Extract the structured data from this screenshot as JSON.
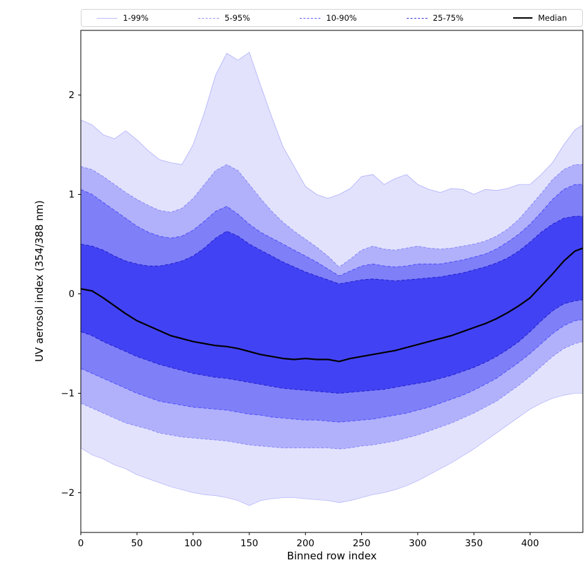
{
  "figure": {
    "background": "#ffffff"
  },
  "legend": {
    "items": [
      {
        "name": "band-1-99",
        "label": "1-99%",
        "color": "rgba(135,135,250,0.55)",
        "line_width": 1,
        "dashed": false
      },
      {
        "name": "band-5-95",
        "label": "5-95%",
        "color": "rgba(110,110,250,0.75)",
        "line_width": 1,
        "dashed": true
      },
      {
        "name": "band-10-90",
        "label": "10-90%",
        "color": "rgba(70,70,250,0.9)",
        "line_width": 1.2,
        "dashed": true
      },
      {
        "name": "band-25-75",
        "label": "25-75%",
        "color": "rgba(40,40,215,0.95)",
        "line_width": 1.4,
        "dashed": true
      },
      {
        "name": "median",
        "label": "Median",
        "color": "#000000",
        "line_width": 2.5,
        "dashed": false
      }
    ]
  },
  "chart_data": {
    "type": "area",
    "title": "",
    "xlabel": "Binned row index",
    "ylabel": "UV aerosol index (354/388 nm)",
    "xlim": [
      0,
      447
    ],
    "ylim": [
      -2.4,
      2.65
    ],
    "grid": false,
    "legend_position": "top",
    "xticks": [
      0,
      50,
      100,
      150,
      200,
      250,
      300,
      350,
      400
    ],
    "xtick_labels": [
      "0",
      "50",
      "100",
      "150",
      "200",
      "250",
      "300",
      "350",
      "400"
    ],
    "yticks": [
      -2,
      -1,
      0,
      1,
      2
    ],
    "ytick_labels": [
      "−2",
      "−1",
      "0",
      "1",
      "2"
    ],
    "x": [
      0,
      10,
      20,
      30,
      40,
      50,
      60,
      70,
      80,
      90,
      100,
      110,
      120,
      130,
      140,
      150,
      160,
      170,
      180,
      190,
      200,
      210,
      220,
      230,
      240,
      250,
      260,
      270,
      280,
      290,
      300,
      310,
      320,
      330,
      340,
      350,
      360,
      370,
      380,
      390,
      400,
      410,
      420,
      430,
      440,
      447
    ],
    "series": {
      "p1": [
        -1.55,
        -1.62,
        -1.66,
        -1.72,
        -1.76,
        -1.82,
        -1.86,
        -1.9,
        -1.94,
        -1.97,
        -2.0,
        -2.02,
        -2.03,
        -2.05,
        -2.08,
        -2.13,
        -2.08,
        -2.06,
        -2.05,
        -2.05,
        -2.06,
        -2.07,
        -2.08,
        -2.1,
        -2.08,
        -2.05,
        -2.02,
        -2.0,
        -1.97,
        -1.93,
        -1.88,
        -1.82,
        -1.76,
        -1.7,
        -1.63,
        -1.56,
        -1.48,
        -1.4,
        -1.32,
        -1.24,
        -1.16,
        -1.1,
        -1.05,
        -1.02,
        -1.0,
        -1.0
      ],
      "p5": [
        -1.1,
        -1.15,
        -1.2,
        -1.25,
        -1.3,
        -1.33,
        -1.36,
        -1.4,
        -1.42,
        -1.44,
        -1.45,
        -1.46,
        -1.47,
        -1.48,
        -1.5,
        -1.52,
        -1.53,
        -1.54,
        -1.55,
        -1.55,
        -1.55,
        -1.55,
        -1.55,
        -1.56,
        -1.55,
        -1.53,
        -1.52,
        -1.5,
        -1.48,
        -1.45,
        -1.42,
        -1.38,
        -1.34,
        -1.3,
        -1.25,
        -1.2,
        -1.14,
        -1.08,
        -1.0,
        -0.92,
        -0.83,
        -0.73,
        -0.63,
        -0.55,
        -0.5,
        -0.48
      ],
      "p10": [
        -0.75,
        -0.8,
        -0.85,
        -0.9,
        -0.95,
        -1.0,
        -1.04,
        -1.08,
        -1.1,
        -1.12,
        -1.14,
        -1.15,
        -1.16,
        -1.17,
        -1.19,
        -1.21,
        -1.22,
        -1.24,
        -1.25,
        -1.26,
        -1.27,
        -1.27,
        -1.28,
        -1.29,
        -1.28,
        -1.27,
        -1.26,
        -1.24,
        -1.22,
        -1.2,
        -1.17,
        -1.14,
        -1.1,
        -1.06,
        -1.02,
        -0.97,
        -0.91,
        -0.85,
        -0.77,
        -0.69,
        -0.6,
        -0.5,
        -0.4,
        -0.32,
        -0.27,
        -0.26
      ],
      "p25": [
        -0.38,
        -0.42,
        -0.48,
        -0.53,
        -0.58,
        -0.63,
        -0.67,
        -0.71,
        -0.74,
        -0.77,
        -0.8,
        -0.82,
        -0.84,
        -0.85,
        -0.87,
        -0.89,
        -0.91,
        -0.93,
        -0.95,
        -0.96,
        -0.97,
        -0.98,
        -0.99,
        -1.0,
        -0.99,
        -0.98,
        -0.97,
        -0.96,
        -0.94,
        -0.92,
        -0.9,
        -0.88,
        -0.85,
        -0.82,
        -0.78,
        -0.74,
        -0.69,
        -0.63,
        -0.56,
        -0.48,
        -0.38,
        -0.27,
        -0.17,
        -0.1,
        -0.07,
        -0.06
      ],
      "median": [
        0.05,
        0.03,
        -0.04,
        -0.12,
        -0.2,
        -0.27,
        -0.32,
        -0.37,
        -0.42,
        -0.45,
        -0.48,
        -0.5,
        -0.52,
        -0.53,
        -0.55,
        -0.58,
        -0.61,
        -0.63,
        -0.65,
        -0.66,
        -0.65,
        -0.66,
        -0.66,
        -0.68,
        -0.65,
        -0.63,
        -0.61,
        -0.59,
        -0.57,
        -0.54,
        -0.51,
        -0.48,
        -0.45,
        -0.42,
        -0.38,
        -0.34,
        -0.3,
        -0.25,
        -0.19,
        -0.12,
        -0.04,
        0.08,
        0.2,
        0.33,
        0.43,
        0.46
      ],
      "p75": [
        0.5,
        0.48,
        0.44,
        0.38,
        0.33,
        0.3,
        0.28,
        0.28,
        0.3,
        0.33,
        0.38,
        0.46,
        0.56,
        0.63,
        0.58,
        0.5,
        0.44,
        0.38,
        0.32,
        0.27,
        0.22,
        0.18,
        0.14,
        0.1,
        0.12,
        0.14,
        0.15,
        0.14,
        0.13,
        0.14,
        0.15,
        0.16,
        0.17,
        0.19,
        0.21,
        0.24,
        0.27,
        0.31,
        0.36,
        0.43,
        0.52,
        0.62,
        0.7,
        0.76,
        0.78,
        0.78
      ],
      "p90": [
        1.05,
        1.0,
        0.92,
        0.84,
        0.76,
        0.68,
        0.62,
        0.58,
        0.56,
        0.58,
        0.64,
        0.73,
        0.83,
        0.88,
        0.8,
        0.7,
        0.62,
        0.56,
        0.5,
        0.44,
        0.38,
        0.32,
        0.25,
        0.18,
        0.23,
        0.28,
        0.3,
        0.28,
        0.27,
        0.28,
        0.3,
        0.3,
        0.3,
        0.32,
        0.34,
        0.37,
        0.4,
        0.45,
        0.52,
        0.6,
        0.7,
        0.82,
        0.95,
        1.05,
        1.1,
        1.1
      ],
      "p95": [
        1.28,
        1.25,
        1.18,
        1.1,
        1.02,
        0.95,
        0.89,
        0.84,
        0.82,
        0.86,
        0.96,
        1.1,
        1.24,
        1.3,
        1.24,
        1.1,
        0.96,
        0.83,
        0.72,
        0.63,
        0.55,
        0.47,
        0.38,
        0.27,
        0.35,
        0.44,
        0.48,
        0.45,
        0.44,
        0.46,
        0.48,
        0.46,
        0.45,
        0.46,
        0.48,
        0.5,
        0.53,
        0.58,
        0.65,
        0.75,
        0.88,
        1.01,
        1.15,
        1.25,
        1.3,
        1.3
      ],
      "p99": [
        1.75,
        1.7,
        1.6,
        1.56,
        1.64,
        1.55,
        1.44,
        1.35,
        1.32,
        1.3,
        1.5,
        1.82,
        2.2,
        2.42,
        2.35,
        2.43,
        2.1,
        1.78,
        1.48,
        1.28,
        1.08,
        1.0,
        0.96,
        1.0,
        1.06,
        1.18,
        1.2,
        1.1,
        1.16,
        1.2,
        1.1,
        1.05,
        1.02,
        1.06,
        1.05,
        1.0,
        1.05,
        1.04,
        1.06,
        1.1,
        1.1,
        1.2,
        1.32,
        1.5,
        1.65,
        1.7
      ]
    },
    "bands": [
      {
        "name": "1-99",
        "label": "1-99%",
        "lower": "p1",
        "upper": "p99",
        "fill": "rgba(92,92,246,0.18)"
      },
      {
        "name": "5-95",
        "label": "5-95%",
        "lower": "p5",
        "upper": "p95",
        "fill": "rgba(92,92,246,0.36)"
      },
      {
        "name": "10-90",
        "label": "10-90%",
        "lower": "p10",
        "upper": "p90",
        "fill": "rgba(85,85,246,0.55)"
      },
      {
        "name": "25-75",
        "label": "25-75%",
        "lower": "p25",
        "upper": "p75",
        "fill": "rgba(55,55,245,0.85)"
      }
    ],
    "edges": [
      {
        "series": "p1",
        "color": "rgba(140,140,250,0.55)",
        "width": 0.8,
        "dash": ""
      },
      {
        "series": "p99",
        "color": "rgba(140,140,250,0.65)",
        "width": 0.8,
        "dash": ""
      },
      {
        "series": "p5",
        "color": "rgba(110,110,250,0.75)",
        "width": 0.9,
        "dash": "4 2.5"
      },
      {
        "series": "p95",
        "color": "rgba(110,110,250,0.8)",
        "width": 0.9,
        "dash": "4 2.5"
      },
      {
        "series": "p10",
        "color": "rgba(70,70,250,0.85)",
        "width": 1,
        "dash": "5 2.5"
      },
      {
        "series": "p90",
        "color": "rgba(70,70,250,0.9)",
        "width": 1,
        "dash": "5 2.5"
      },
      {
        "series": "p25",
        "color": "rgba(35,35,205,0.95)",
        "width": 1.1,
        "dash": "5 2.5"
      },
      {
        "series": "p75",
        "color": "rgba(35,35,205,0.95)",
        "width": 1.1,
        "dash": "5 2.5"
      }
    ],
    "median_style": {
      "color": "#000000",
      "width": 2.2
    }
  }
}
